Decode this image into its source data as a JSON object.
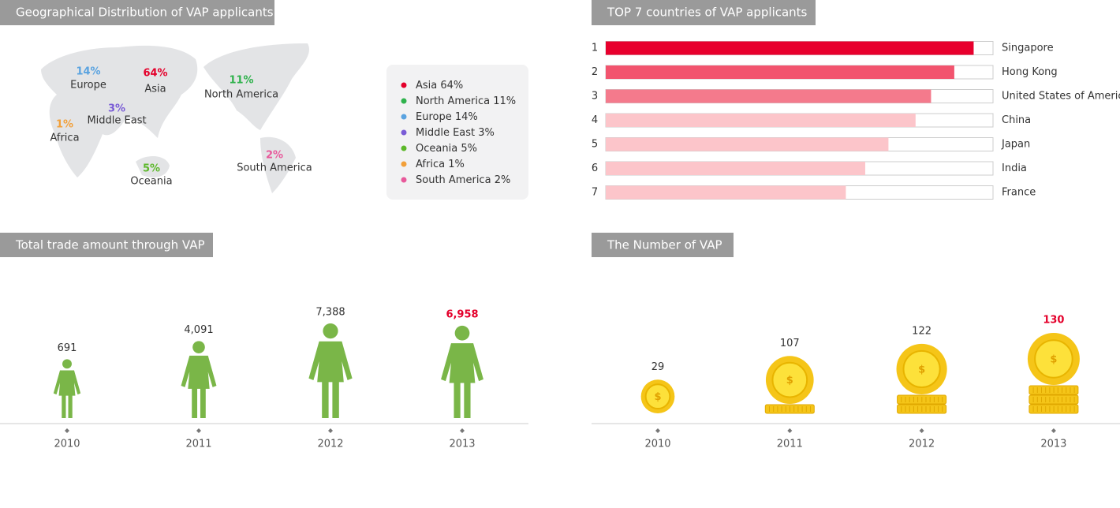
{
  "chart_data": [
    {
      "type": "distribution",
      "title": "Geographical Distribution of VAP applicants",
      "categories": [
        "Asia",
        "North America",
        "Europe",
        "Middle East",
        "Oceania",
        "Africa",
        "South America"
      ],
      "values": [
        64,
        11,
        14,
        3,
        5,
        1,
        2
      ],
      "value_labels": [
        "64%",
        "11%",
        "14%",
        "3%",
        "5%",
        "1%",
        "2%"
      ],
      "colors": [
        "#e4002b",
        "#2fb24c",
        "#5aa3e0",
        "#7a5cd6",
        "#5cb82a",
        "#f2a03a",
        "#e8599b"
      ]
    },
    {
      "type": "hbar",
      "title": "TOP 7 countries of VAP applicants",
      "ranks": [
        1,
        2,
        3,
        4,
        5,
        6,
        7
      ],
      "categories": [
        "Singapore",
        "Hong Kong",
        "United States of America",
        "China",
        "Japan",
        "India",
        "France"
      ],
      "values": [
        95,
        90,
        84,
        80,
        73,
        67,
        62
      ],
      "colors": [
        "#e8002d",
        "#f2546e",
        "#f47a8c",
        "#fcc5ca",
        "#fcc5ca",
        "#fcc5ca",
        "#fcc5ca"
      ],
      "xlim": [
        0,
        100
      ]
    },
    {
      "type": "figures",
      "title": "Total trade amount through VAP",
      "categories": [
        "2010",
        "2011",
        "2012",
        "2013"
      ],
      "values": [
        691,
        4091,
        7388,
        6958
      ],
      "value_labels": [
        "691",
        "4,091",
        "7,388",
        "6,958"
      ],
      "color": "#7ab648",
      "highlight_color": "#e4002b"
    },
    {
      "type": "coins",
      "title": "The Number of VAP",
      "categories": [
        "2010",
        "2011",
        "2012",
        "2013"
      ],
      "values": [
        29,
        107,
        122,
        130
      ],
      "color": "#f5c518",
      "highlight_color": "#e4002b"
    }
  ]
}
